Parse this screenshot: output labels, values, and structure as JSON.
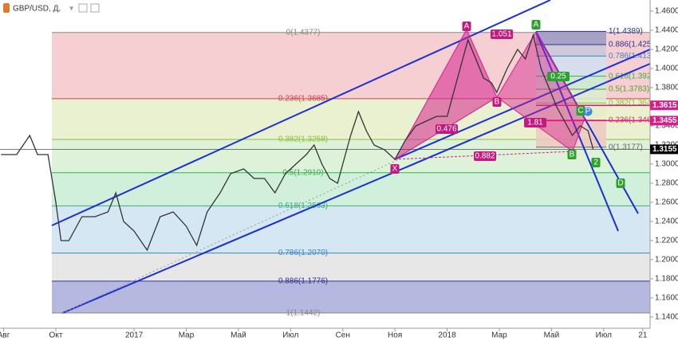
{
  "chart_data": {
    "type": "line",
    "title": "GBP/USD, Д,",
    "xlim": [
      -0.14,
      24.78
    ],
    "xticks": [
      {
        "value": 0,
        "label": "Авг"
      },
      {
        "value": 2,
        "label": "Окт"
      },
      {
        "value": 5,
        "label": "2017"
      },
      {
        "value": 7,
        "label": "Мар"
      },
      {
        "value": 9,
        "label": "Май"
      },
      {
        "value": 11,
        "label": "Июл"
      },
      {
        "value": 13,
        "label": "Сен"
      },
      {
        "value": 15,
        "label": "Ноя"
      },
      {
        "value": 17,
        "label": "2018"
      },
      {
        "value": 19,
        "label": "Мар"
      },
      {
        "value": 21,
        "label": "Май"
      },
      {
        "value": 23,
        "label": "Июл"
      },
      {
        "value": 24.5,
        "label": "21"
      }
    ],
    "ylim": [
      1.1283,
      1.4717
    ],
    "yticks": [
      {
        "value": 1.14,
        "label": "1.1400"
      },
      {
        "value": 1.16,
        "label": "1.1600"
      },
      {
        "value": 1.18,
        "label": "1.1800"
      },
      {
        "value": 1.2,
        "label": "1.2000"
      },
      {
        "value": 1.22,
        "label": "1.2200"
      },
      {
        "value": 1.24,
        "label": "1.2400"
      },
      {
        "value": 1.26,
        "label": "1.2600"
      },
      {
        "value": 1.28,
        "label": "1.2800"
      },
      {
        "value": 1.3,
        "label": "1.3000"
      },
      {
        "value": 1.32,
        "label": "1.3200"
      },
      {
        "value": 1.34,
        "label": "1.3400"
      },
      {
        "value": 1.36,
        "label": "1.3600"
      },
      {
        "value": 1.38,
        "label": "1.3800"
      },
      {
        "value": 1.4,
        "label": "1.4000"
      },
      {
        "value": 1.42,
        "label": "1.4200"
      },
      {
        "value": 1.44,
        "label": "1.4400"
      },
      {
        "value": 1.46,
        "label": "1.4600"
      }
    ],
    "series": [
      {
        "color": "#333333",
        "x": [
          -0.1,
          0.5,
          1.0,
          1.3,
          1.7,
          2.0,
          2.2,
          2.5,
          3.0,
          3.5,
          4.0,
          4.3,
          4.6,
          5.0,
          5.5,
          6.0,
          6.5,
          7.0,
          7.4,
          7.8,
          8.3,
          8.7,
          9.2,
          9.6,
          10.0,
          10.4,
          10.8,
          11.2,
          11.6,
          11.9,
          12.2,
          12.5,
          12.8,
          13.0,
          13.3,
          13.6,
          13.9,
          14.2,
          14.6,
          15.0,
          15.4,
          15.8,
          16.2,
          16.6,
          17.0,
          17.4,
          17.8,
          18.1,
          18.4,
          18.7,
          18.9,
          19.3,
          19.7,
          20.0,
          20.3,
          20.6,
          20.9,
          21.2,
          21.5,
          21.8,
          22.1,
          22.4,
          22.6
        ],
        "values": [
          1.31,
          1.31,
          1.33,
          1.31,
          1.31,
          1.26,
          1.22,
          1.22,
          1.245,
          1.245,
          1.25,
          1.27,
          1.24,
          1.23,
          1.21,
          1.245,
          1.25,
          1.235,
          1.215,
          1.25,
          1.27,
          1.29,
          1.295,
          1.285,
          1.285,
          1.27,
          1.29,
          1.3,
          1.31,
          1.32,
          1.3,
          1.285,
          1.28,
          1.3,
          1.33,
          1.355,
          1.335,
          1.32,
          1.315,
          1.305,
          1.325,
          1.34,
          1.345,
          1.35,
          1.35,
          1.39,
          1.43,
          1.41,
          1.39,
          1.385,
          1.375,
          1.4,
          1.42,
          1.41,
          1.435,
          1.4,
          1.38,
          1.36,
          1.345,
          1.33,
          1.34,
          1.335,
          1.3155
        ]
      }
    ],
    "fib_main": [
      {
        "label": "0(1.4377)",
        "value": 1.4377,
        "color": "#f3c7c9"
      },
      {
        "label": "0.236(1.3685)",
        "value": 1.3685,
        "color": "#e6efc8"
      },
      {
        "label": "0.382(1.3258)",
        "value": 1.3258,
        "color": "#d8f0d2"
      },
      {
        "label": "0.5(1.2910)",
        "value": 1.291,
        "color": "#c9edd6"
      },
      {
        "label": "0.618(1.2563)",
        "value": 1.2563,
        "color": "#cfe3f2"
      },
      {
        "label": "0.786(1.2070)",
        "value": 1.207,
        "color": "#e3e3e3"
      },
      {
        "label": "0.886(1.1776)",
        "value": 1.1776,
        "color": "#aaabd9"
      },
      {
        "label": "1(1.1442)",
        "value": 1.1442,
        "color": "#aaabd9"
      }
    ],
    "fib_small": [
      {
        "label": "1(1.4389)",
        "value": 1.4389,
        "color": "#9a9ac8"
      },
      {
        "label": "0.886(1.425",
        "value": 1.425,
        "color": "#c8c8d8"
      },
      {
        "label": "0.786(1.413",
        "value": 1.413,
        "color": "#cfe0ee"
      },
      {
        "label": "0.618(1.392",
        "value": 1.392,
        "color": "#c8ecd3"
      },
      {
        "label": "0.5(1.3783)",
        "value": 1.3783,
        "color": "#d8efcf"
      },
      {
        "label": "0.382(1.364",
        "value": 1.364,
        "color": "#e5eec5"
      },
      {
        "label": "0.236(1.346",
        "value": 1.346,
        "color": "#edc8c0"
      },
      {
        "label": "0(1.3177)",
        "value": 1.3177,
        "color": "#edc8c0"
      }
    ],
    "price_labels": [
      {
        "value": 1.3615,
        "label": "1.3615",
        "color": "#e0198a"
      },
      {
        "value": 1.3455,
        "label": "1.3455",
        "color": "#e0198a"
      },
      {
        "value": 1.3155,
        "label": "1.3155",
        "color": "#000000"
      }
    ],
    "annotations": [
      "X",
      "A",
      "B",
      "C",
      "D",
      "1.051",
      "0.476",
      "0.882",
      "1.81",
      "0.25",
      "A",
      "B",
      "C",
      "P",
      "2"
    ]
  }
}
